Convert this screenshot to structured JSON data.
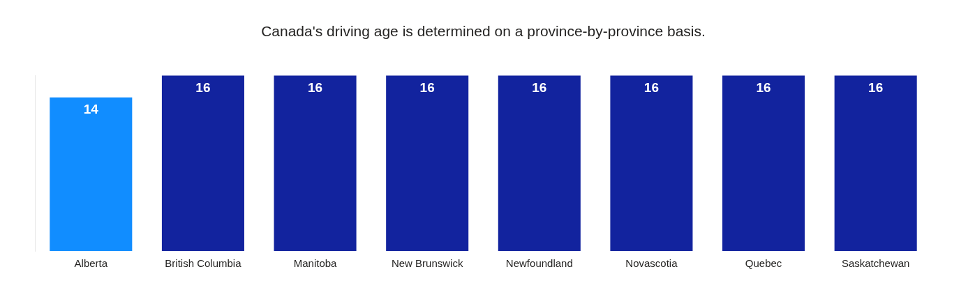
{
  "chart_data": {
    "type": "bar",
    "title": "Canada's driving age is determined on a province-by-province basis.",
    "categories": [
      "Alberta",
      "British Columbia",
      "Manitoba",
      "New Brunswick",
      "Newfoundland",
      "Novascotia",
      "Quebec",
      "Saskatchewan"
    ],
    "values": [
      14,
      16,
      16,
      16,
      16,
      16,
      16,
      16
    ],
    "colors": [
      "#118dff",
      "#12239e",
      "#12239e",
      "#12239e",
      "#12239e",
      "#12239e",
      "#12239e",
      "#12239e"
    ],
    "ylim": [
      0,
      16
    ],
    "yticks": [],
    "grid": false,
    "data_labels": true,
    "tick_labels": "x"
  }
}
